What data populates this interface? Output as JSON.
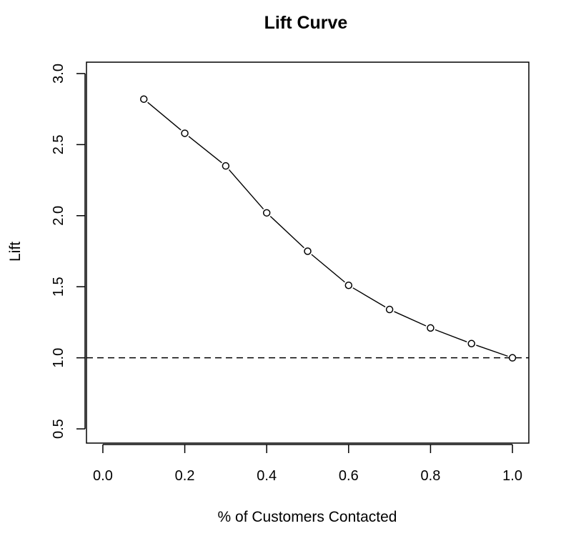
{
  "chart_data": {
    "type": "line",
    "title": "Lift Curve",
    "xlabel": "% of Customers Contacted",
    "ylabel": "Lift",
    "xlim": [
      -0.04,
      1.04
    ],
    "ylim": [
      0.4,
      3.08
    ],
    "xticks": [
      0.0,
      0.2,
      0.4,
      0.6,
      0.8,
      1.0
    ],
    "xtick_labels": [
      "0.0",
      "0.2",
      "0.4",
      "0.6",
      "0.8",
      "1.0"
    ],
    "yticks": [
      0.5,
      1.0,
      1.5,
      2.0,
      2.5,
      3.0
    ],
    "ytick_labels": [
      "0.5",
      "1.0",
      "1.5",
      "2.0",
      "2.5",
      "3.0"
    ],
    "series": [
      {
        "x": [
          0.1,
          0.2,
          0.3,
          0.4,
          0.5,
          0.6,
          0.7,
          0.8,
          0.9,
          1.0
        ],
        "values": [
          2.82,
          2.58,
          2.35,
          2.02,
          1.75,
          1.51,
          1.34,
          1.21,
          1.1,
          1.0
        ],
        "style": "line-with-open-circles",
        "color": "#000000"
      }
    ],
    "reference_line": {
      "y": 1.0,
      "style": "dashed",
      "color": "#000000"
    },
    "grid": false,
    "legend": "none"
  }
}
